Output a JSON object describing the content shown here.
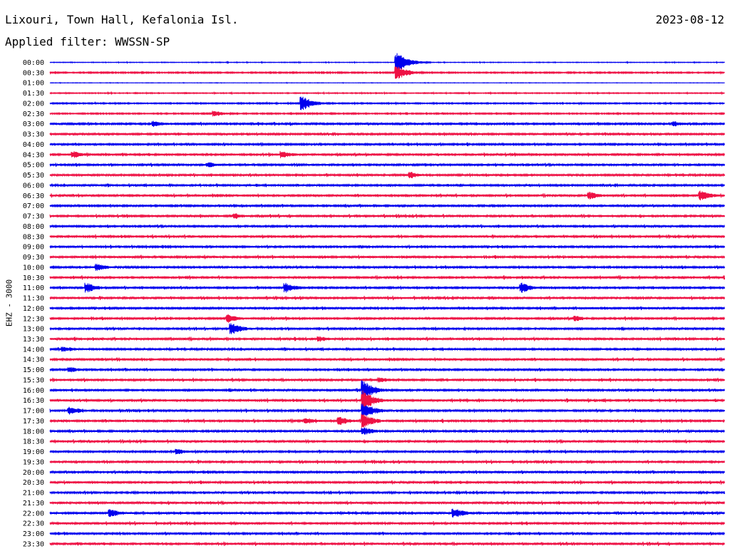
{
  "header": {
    "station": "Lixouri, Town Hall, Kefalonia Isl.",
    "date": "2023-08-12",
    "filter": "Applied filter: WWSSN-SP",
    "channel": "EHZ - 3000"
  },
  "colors": {
    "blue": "#0000ee",
    "red": "#ee1144"
  },
  "chart_data": {
    "type": "line",
    "title": "Lixouri, Town Hall, Kefalonia Isl.",
    "ylabel": "EHZ - 3000",
    "categories": [
      "00:00",
      "00:30",
      "01:00",
      "01:30",
      "02:00",
      "02:30",
      "03:00",
      "03:30",
      "04:00",
      "04:30",
      "05:00",
      "05:30",
      "06:00",
      "06:30",
      "07:00",
      "07:30",
      "08:00",
      "08:30",
      "09:00",
      "09:30",
      "10:00",
      "10:30",
      "11:00",
      "11:30",
      "12:00",
      "12:30",
      "13:00",
      "13:30",
      "14:00",
      "14:30",
      "15:00",
      "15:30",
      "16:00",
      "16:30",
      "17:00",
      "17:30",
      "18:00",
      "18:30",
      "19:00",
      "19:30",
      "20:00",
      "20:30",
      "21:00",
      "21:30",
      "22:00",
      "22:30",
      "23:00",
      "23:30"
    ],
    "series_colors": [
      "blue",
      "red"
    ],
    "noise_level": [
      0.3,
      0.6,
      0.2,
      0.45,
      0.55,
      0.6,
      0.9,
      0.9,
      0.9,
      1.0,
      0.9,
      0.9,
      0.9,
      1.0,
      0.9,
      1.0,
      0.9,
      1.0,
      0.9,
      1.0,
      0.9,
      1.0,
      0.9,
      1.0,
      0.9,
      1.0,
      0.9,
      1.0,
      0.9,
      1.0,
      0.9,
      1.0,
      0.9,
      1.0,
      0.9,
      1.0,
      0.9,
      1.0,
      0.9,
      1.0,
      0.9,
      1.0,
      0.9,
      1.0,
      0.9,
      1.0,
      0.9,
      1.0
    ],
    "events": [
      {
        "row": 0,
        "t": 0.515,
        "amp": 14
      },
      {
        "row": 1,
        "t": 0.515,
        "amp": 10
      },
      {
        "row": 4,
        "t": 0.375,
        "amp": 10
      },
      {
        "row": 5,
        "t": 0.245,
        "amp": 4
      },
      {
        "row": 6,
        "t": 0.155,
        "amp": 5
      },
      {
        "row": 6,
        "t": 0.925,
        "amp": 4
      },
      {
        "row": 9,
        "t": 0.035,
        "amp": 5
      },
      {
        "row": 9,
        "t": 0.345,
        "amp": 5
      },
      {
        "row": 10,
        "t": 0.235,
        "amp": 4
      },
      {
        "row": 11,
        "t": 0.535,
        "amp": 5
      },
      {
        "row": 13,
        "t": 0.8,
        "amp": 6
      },
      {
        "row": 13,
        "t": 0.965,
        "amp": 7
      },
      {
        "row": 15,
        "t": 0.275,
        "amp": 4
      },
      {
        "row": 20,
        "t": 0.07,
        "amp": 5
      },
      {
        "row": 22,
        "t": 0.055,
        "amp": 7
      },
      {
        "row": 22,
        "t": 0.35,
        "amp": 7
      },
      {
        "row": 22,
        "t": 0.7,
        "amp": 7
      },
      {
        "row": 25,
        "t": 0.265,
        "amp": 6
      },
      {
        "row": 25,
        "t": 0.78,
        "amp": 4
      },
      {
        "row": 26,
        "t": 0.27,
        "amp": 8
      },
      {
        "row": 27,
        "t": 0.4,
        "amp": 4
      },
      {
        "row": 28,
        "t": 0.02,
        "amp": 4
      },
      {
        "row": 30,
        "t": 0.03,
        "amp": 4
      },
      {
        "row": 31,
        "t": 0.49,
        "amp": 4
      },
      {
        "row": 32,
        "t": 0.465,
        "amp": 14
      },
      {
        "row": 33,
        "t": 0.465,
        "amp": 14
      },
      {
        "row": 34,
        "t": 0.465,
        "amp": 12
      },
      {
        "row": 34,
        "t": 0.03,
        "amp": 6
      },
      {
        "row": 35,
        "t": 0.465,
        "amp": 10
      },
      {
        "row": 35,
        "t": 0.43,
        "amp": 6
      },
      {
        "row": 35,
        "t": 0.38,
        "amp": 5
      },
      {
        "row": 36,
        "t": 0.465,
        "amp": 6
      },
      {
        "row": 38,
        "t": 0.19,
        "amp": 4
      },
      {
        "row": 44,
        "t": 0.09,
        "amp": 6
      },
      {
        "row": 44,
        "t": 0.6,
        "amp": 7
      }
    ]
  }
}
